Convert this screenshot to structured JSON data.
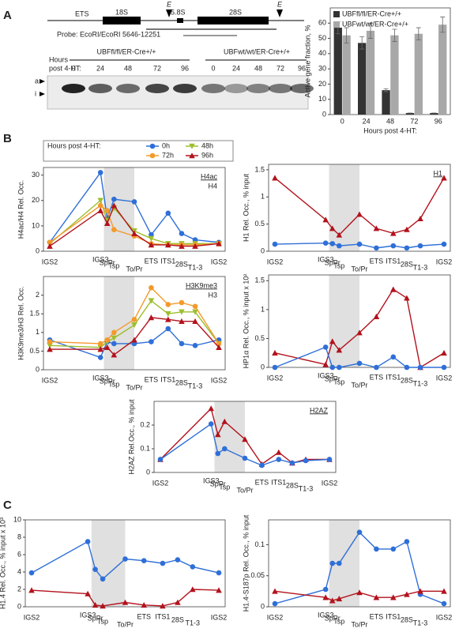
{
  "panels": [
    "A",
    "B",
    "C"
  ],
  "diagram": {
    "ets": "ETS",
    "s18": "18S",
    "s58": "5.8S",
    "s28": "28S",
    "e1": "E",
    "e2": "E",
    "probe": "Probe: EcoRI/EcoRI 5646-12251"
  },
  "gel": {
    "hours_label": [
      "Hours",
      "post 4-HT:"
    ],
    "groups": [
      "UBFfl/fl/ER-Cre+/+",
      "UBFwt/wt/ER-Cre+/+"
    ],
    "lanes": [
      "0",
      "24",
      "48",
      "72",
      "96",
      "0",
      "24",
      "48",
      "72",
      "96"
    ],
    "bands": [
      "a",
      "i"
    ]
  },
  "chart_data": [
    {
      "type": "bar",
      "ylabel": "Active gene fraction, %",
      "xlabel": "Hours post 4-HT:",
      "categories": [
        "0",
        "24",
        "48",
        "72",
        "96"
      ],
      "series": [
        {
          "name": "UBFfl/fl/ER-Cre+/+",
          "color": "#333333",
          "values": [
            57,
            47,
            16,
            1,
            1
          ],
          "errors": [
            4,
            4,
            1,
            0,
            0
          ]
        },
        {
          "name": "UBFwt/wt/ER-Cre+/+",
          "color": "#a8a8a8",
          "values": [
            52,
            55,
            52,
            53,
            59
          ],
          "errors": [
            5,
            5,
            4,
            4,
            5
          ]
        }
      ],
      "ylim": [
        0,
        70
      ],
      "yticks": [
        0,
        10,
        20,
        30,
        40,
        50,
        60
      ]
    },
    {
      "type": "line",
      "title": "H4ac",
      "subtitle": "H4",
      "ylabel": "H4ac/H4 Rel. Occ.",
      "legend_title": "Hours post 4-HT:",
      "categories": [
        "IGS2",
        "IGS3",
        "SpPr",
        "Tsp",
        "To/Pr",
        "ETS",
        "ITS1",
        "28S",
        "T1-3",
        "IGS2"
      ],
      "series": [
        {
          "name": "0h",
          "color": "#2e6fd8",
          "marker": "circle",
          "values": [
            3.5,
            31,
            13,
            20.5,
            19.5,
            6.5,
            15,
            7,
            4.5,
            3.5
          ]
        },
        {
          "name": "48h",
          "color": "#9dbe2c",
          "marker": "triangle-down",
          "values": [
            3,
            20,
            12,
            17,
            8,
            5,
            3,
            3,
            3,
            3
          ]
        },
        {
          "name": "72h",
          "color": "#f39a2b",
          "marker": "circle",
          "values": [
            3.5,
            18,
            16,
            8.5,
            6,
            3,
            2.5,
            2.5,
            2.5,
            3
          ]
        },
        {
          "name": "96h",
          "color": "#b3121c",
          "marker": "triangle-up",
          "values": [
            2,
            16,
            11,
            18,
            7,
            2.5,
            2.5,
            2,
            2,
            3
          ]
        }
      ],
      "ylim": [
        0,
        33
      ],
      "yticks": [
        0,
        10,
        20,
        30
      ]
    },
    {
      "type": "line",
      "title": "H1",
      "ylabel": "H1 Rel. Occ., % input",
      "categories": [
        "IGS2",
        "IGS3",
        "SpPr",
        "Tsp",
        "To/Pr",
        "ETS",
        "ITS1",
        "28S",
        "T1-3",
        "IGS2"
      ],
      "series": [
        {
          "name": "96h",
          "color": "#b3121c",
          "marker": "triangle-up",
          "values": [
            1.35,
            0.58,
            0.42,
            0.3,
            0.68,
            0.42,
            0.33,
            0.4,
            0.6,
            1.35
          ]
        },
        {
          "name": "0h",
          "color": "#2e6fd8",
          "marker": "circle",
          "values": [
            0.13,
            0.15,
            0.14,
            0.1,
            0.13,
            0.06,
            0.1,
            0.06,
            0.1,
            0.13
          ]
        }
      ],
      "ylim": [
        0,
        1.6
      ],
      "yticks": [
        0,
        0.5,
        1,
        1.5
      ]
    },
    {
      "type": "line",
      "title": "H3K9me3",
      "subtitle": "H3",
      "ylabel": "H3K9me3/H3 Rel. Occ.",
      "categories": [
        "IGS2",
        "IGS3",
        "SpPr",
        "Tsp",
        "To/Pr",
        "ETS",
        "ITS1",
        "28S",
        "T1-3",
        "IGS2"
      ],
      "series": [
        {
          "name": "0h",
          "color": "#2e6fd8",
          "marker": "circle",
          "values": [
            0.8,
            0.33,
            0.75,
            0.7,
            0.7,
            0.75,
            1.1,
            0.7,
            0.65,
            0.8
          ]
        },
        {
          "name": "48h",
          "color": "#9dbe2c",
          "marker": "triangle-down",
          "values": [
            0.65,
            0.6,
            0.75,
            0.85,
            1.2,
            1.85,
            1.5,
            1.55,
            1.55,
            0.7
          ]
        },
        {
          "name": "72h",
          "color": "#f39a2b",
          "marker": "circle",
          "values": [
            0.75,
            0.7,
            0.8,
            1.0,
            1.35,
            2.2,
            1.75,
            1.8,
            1.7,
            0.7
          ]
        },
        {
          "name": "96h",
          "color": "#b3121c",
          "marker": "triangle-up",
          "values": [
            0.55,
            0.55,
            0.6,
            0.4,
            0.8,
            1.4,
            1.35,
            1.3,
            1.3,
            0.6
          ]
        }
      ],
      "ylim": [
        0,
        2.5
      ],
      "yticks": [
        0,
        0.5,
        1,
        1.5,
        2
      ]
    },
    {
      "type": "line",
      "ylabel": "HP1α Rel. Occ., % input x 10²",
      "categories": [
        "IGS2",
        "IGS3",
        "SpPr",
        "Tsp",
        "To/Pr",
        "ETS",
        "ITS1",
        "28S",
        "T1-3",
        "IGS2"
      ],
      "series": [
        {
          "name": "96h",
          "color": "#b3121c",
          "marker": "triangle-up",
          "values": [
            0.25,
            0.05,
            0.45,
            0.3,
            0.6,
            0.88,
            1.35,
            1.2,
            0,
            0.25
          ]
        },
        {
          "name": "0h",
          "color": "#2e6fd8",
          "marker": "circle",
          "values": [
            0,
            0.35,
            0,
            0,
            0.07,
            0,
            0.18,
            0,
            0,
            0
          ]
        }
      ],
      "ylim": [
        0,
        1.6
      ],
      "yticks": [
        0,
        0.5,
        1,
        1.5
      ]
    },
    {
      "type": "line",
      "title": "H2AZ",
      "ylabel": "H2AZ Rel.Occ., % input",
      "categories": [
        "IGS2",
        "IGS3",
        "SpPr",
        "Tsp",
        "To/Pr",
        "ETS",
        "ITS1",
        "28S",
        "T1-3",
        "IGS2"
      ],
      "series": [
        {
          "name": "96h",
          "color": "#b3121c",
          "marker": "triangle-up",
          "values": [
            0.055,
            0.27,
            0.16,
            0.215,
            0.14,
            0.035,
            0.085,
            0.04,
            0.055,
            0.055
          ]
        },
        {
          "name": "0h",
          "color": "#2e6fd8",
          "marker": "circle",
          "values": [
            0.055,
            0.205,
            0.08,
            0.1,
            0.06,
            0.03,
            0.055,
            0.04,
            0.05,
            0.055
          ]
        }
      ],
      "ylim": [
        0,
        0.3
      ],
      "yticks": [
        0,
        0.1,
        0.2
      ]
    },
    {
      "type": "line",
      "ylabel": "H1.4 Rel. Occ., % input x 10³",
      "categories": [
        "IGS2",
        "IGS3",
        "SpPr",
        "Tsp",
        "To/Pr",
        "ETS",
        "ITS1",
        "28S",
        "T1-3",
        "IGS2"
      ],
      "series": [
        {
          "name": "0h",
          "color": "#2e6fd8",
          "marker": "circle",
          "values": [
            3.9,
            7.5,
            4.3,
            3.2,
            5.5,
            5.3,
            5.0,
            5.4,
            4.6,
            3.9
          ]
        },
        {
          "name": "96h",
          "color": "#b3121c",
          "marker": "triangle-up",
          "values": [
            1.9,
            1.5,
            0.2,
            0.1,
            0.5,
            0.2,
            0.1,
            0.5,
            2.0,
            1.9
          ]
        }
      ],
      "ylim": [
        0,
        10
      ],
      "yticks": [
        0,
        2,
        4,
        6,
        8,
        10
      ]
    },
    {
      "type": "line",
      "ylabel": "H1.4-S187p Rel. Occ., % input",
      "categories": [
        "IGS2",
        "IGS3",
        "SpPr",
        "Tsp",
        "To/Pr",
        "ETS",
        "ITS1",
        "28S",
        "T1-3",
        "IGS2"
      ],
      "series": [
        {
          "name": "0h",
          "color": "#2e6fd8",
          "marker": "circle",
          "values": [
            0.005,
            0.028,
            0.07,
            0.07,
            0.12,
            0.093,
            0.093,
            0.105,
            0.02,
            0.005
          ]
        },
        {
          "name": "96h",
          "color": "#b3121c",
          "marker": "triangle-up",
          "values": [
            0.025,
            0.015,
            0.01,
            0.013,
            0.023,
            0.015,
            0.015,
            0.02,
            0.025,
            0.025
          ]
        }
      ],
      "ylim": [
        0,
        0.14
      ],
      "yticks": [
        0,
        0.05,
        0.1
      ]
    }
  ]
}
